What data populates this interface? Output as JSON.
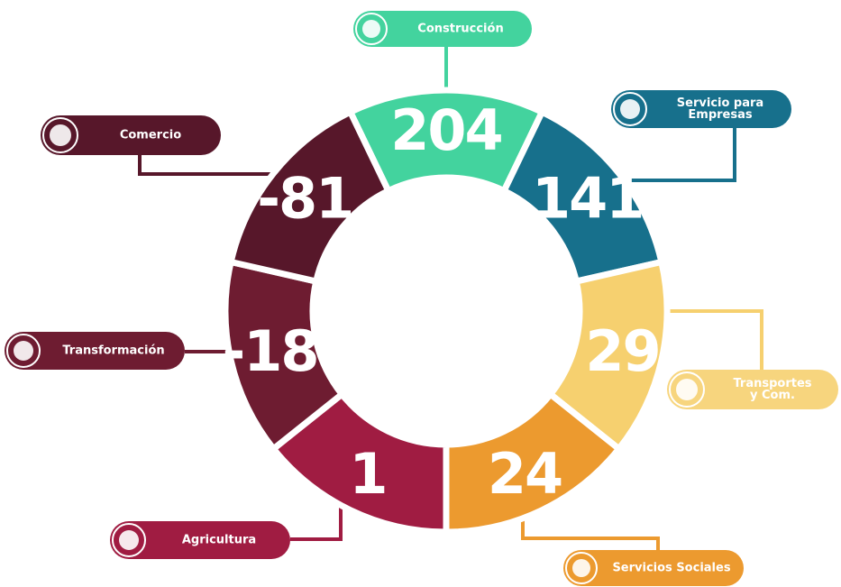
{
  "segments": [
    {
      "label": [
        "Construcción"
      ],
      "value": 204,
      "color": "#43d39e"
    },
    {
      "label": [
        "Servicio para",
        "Empresas"
      ],
      "value": 141,
      "color": "#17708c"
    },
    {
      "label": [
        "Transportes",
        "y Com."
      ],
      "value": 29,
      "color": "#f6d06f"
    },
    {
      "label": [
        "Servicios Sociales"
      ],
      "value": 24,
      "color": "#ec9a2f"
    },
    {
      "label": [
        "Agricultura"
      ],
      "value": 1,
      "color": "#a01c42"
    },
    {
      "label": [
        "Transformación"
      ],
      "value": -18,
      "color": "#6e1c31"
    },
    {
      "label": [
        "Comercio"
      ],
      "value": -81,
      "color": "#57172a"
    }
  ]
}
